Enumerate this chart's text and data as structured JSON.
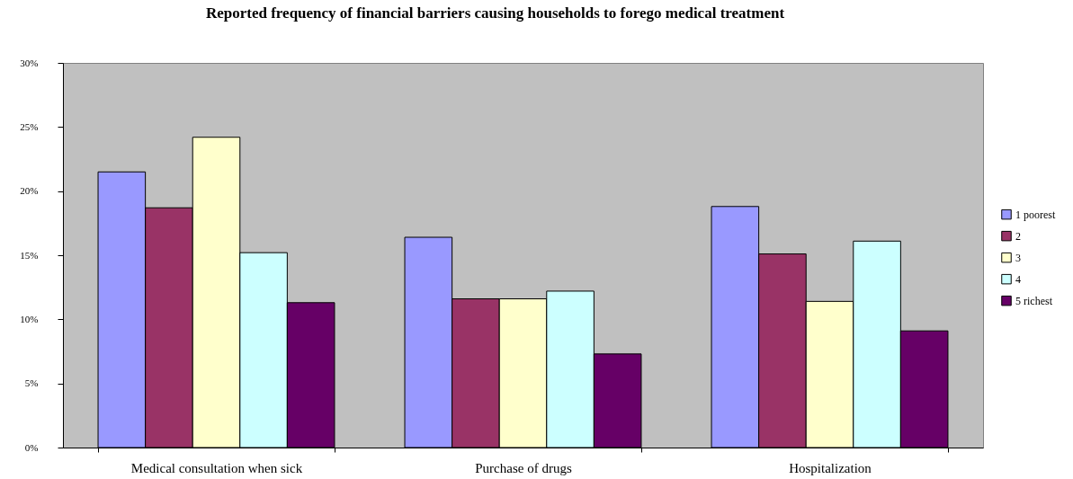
{
  "chart_data": {
    "type": "bar",
    "title": "Reported frequency of financial barriers causing households to forego medical treatment",
    "categories": [
      "Medical consultation when sick",
      "Purchase of drugs",
      "Hospitalization"
    ],
    "series": [
      {
        "name": "1 poorest",
        "color": "#9999ff",
        "values": [
          21.5,
          16.4,
          18.8
        ]
      },
      {
        "name": "2",
        "color": "#993366",
        "values": [
          18.7,
          11.6,
          15.1
        ]
      },
      {
        "name": "3",
        "color": "#ffffcc",
        "values": [
          24.2,
          11.6,
          11.4
        ]
      },
      {
        "name": "4",
        "color": "#ccffff",
        "values": [
          15.2,
          12.2,
          16.1
        ]
      },
      {
        "name": "5 richest",
        "color": "#660066",
        "values": [
          11.3,
          7.3,
          9.1
        ]
      }
    ],
    "ylim": [
      0,
      30
    ],
    "yticks": [
      {
        "value": 0,
        "label": "0%"
      },
      {
        "value": 5,
        "label": "5%"
      },
      {
        "value": 10,
        "label": "10%"
      },
      {
        "value": 15,
        "label": "15%"
      },
      {
        "value": 20,
        "label": "20%"
      },
      {
        "value": 25,
        "label": "25%"
      },
      {
        "value": 30,
        "label": "30%"
      }
    ],
    "legend": "right"
  }
}
